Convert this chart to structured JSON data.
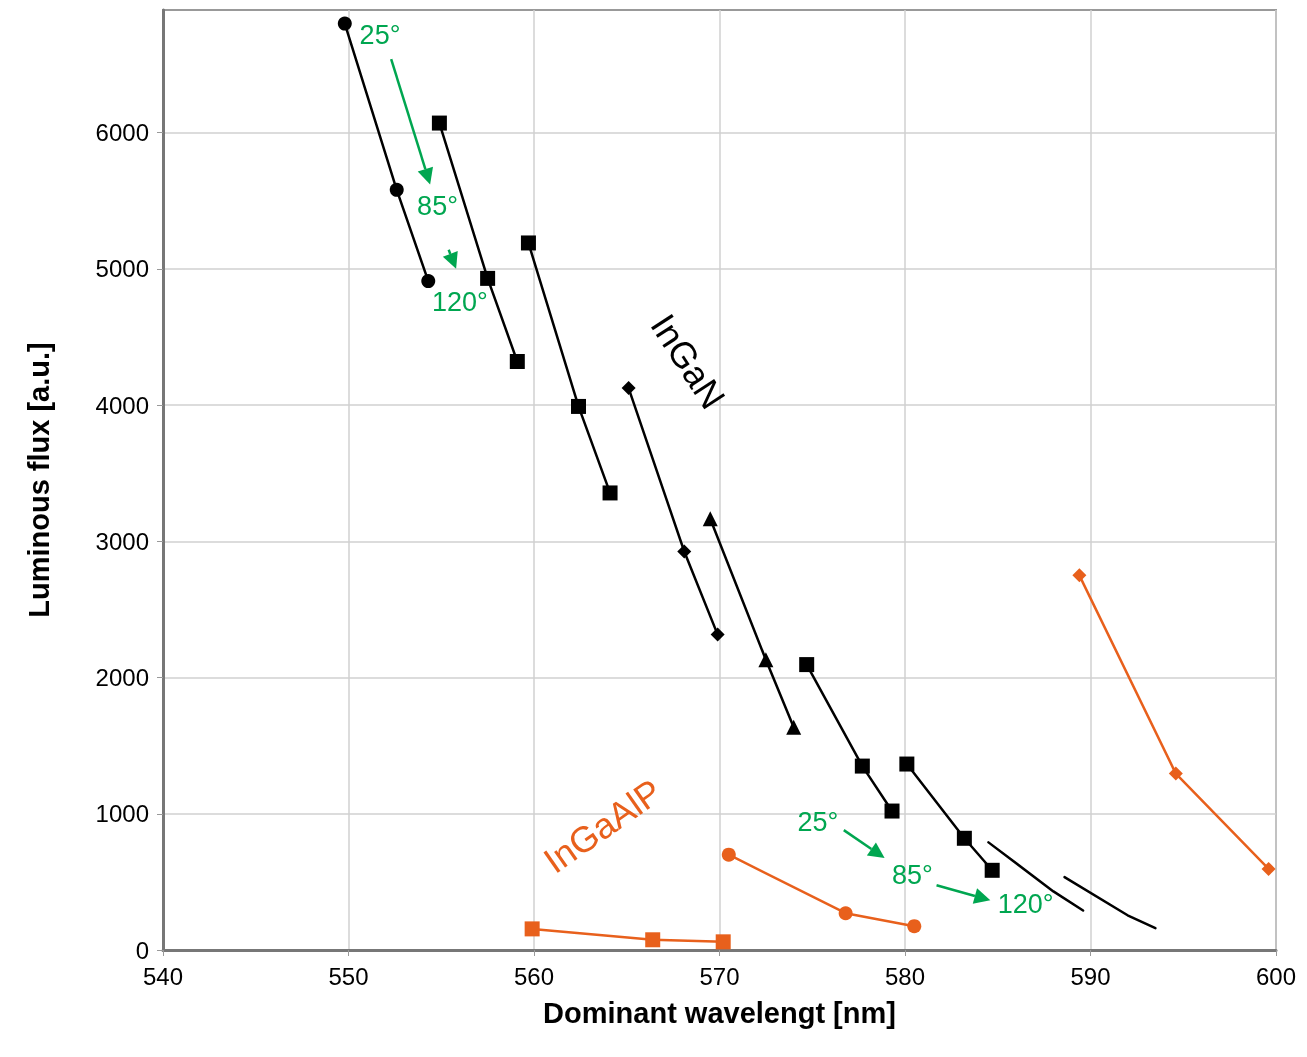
{
  "chart_data": {
    "type": "line",
    "xlabel": "Dominant wavelengt [nm]",
    "ylabel": "Luminous flux [a.u.]",
    "xlim": [
      540,
      600
    ],
    "xticks": [
      540,
      550,
      560,
      570,
      580,
      590,
      600
    ],
    "ylim": [
      0,
      6900
    ],
    "yticks": [
      0,
      1000,
      2000,
      3000,
      4000,
      5000,
      6000
    ],
    "grid": true,
    "line_style": "solid",
    "annotations": [
      "25°",
      "85°",
      "120°",
      "InGaN",
      "InGaAlP",
      "25°",
      "85°",
      "120°"
    ],
    "series": [
      {
        "color": "#000000",
        "marker": "circle",
        "x": [
          549.8,
          552.6,
          554.3
        ],
        "values": [
          6800,
          5580,
          4910
        ]
      },
      {
        "color": "#000000",
        "marker": "square",
        "x": [
          554.9,
          557.5,
          559.1
        ],
        "values": [
          6070,
          4930,
          4320
        ]
      },
      {
        "color": "#000000",
        "marker": "square",
        "x": [
          559.7,
          562.4,
          564.1
        ],
        "values": [
          5190,
          3990,
          3355
        ]
      },
      {
        "color": "#000000",
        "marker": "diamond",
        "x": [
          565.1,
          568.1,
          569.9
        ],
        "values": [
          4125,
          2925,
          2315
        ]
      },
      {
        "color": "#000000",
        "marker": "triangle",
        "x": [
          569.5,
          572.5,
          574.0
        ],
        "values": [
          3165,
          2130,
          1635
        ]
      },
      {
        "color": "#000000",
        "marker": "square",
        "x": [
          574.7,
          577.7,
          579.3
        ],
        "values": [
          2095,
          1350,
          1020
        ]
      },
      {
        "color": "#000000",
        "marker": "square",
        "x": [
          580.1,
          583.2,
          584.7
        ],
        "values": [
          1365,
          820,
          585
        ]
      },
      {
        "color": "#000000",
        "marker": "none",
        "x": [
          584.5,
          588.0,
          589.6
        ],
        "values": [
          790,
          430,
          290
        ]
      },
      {
        "color": "#000000",
        "marker": "none",
        "x": [
          588.6,
          592.0,
          593.5
        ],
        "values": [
          535,
          255,
          160
        ]
      },
      {
        "color": "#e8601c",
        "marker": "square",
        "x": [
          559.9,
          566.4,
          570.2
        ],
        "values": [
          155,
          75,
          60
        ]
      },
      {
        "color": "#e8601c",
        "marker": "circle",
        "x": [
          570.5,
          576.8,
          580.5
        ],
        "values": [
          700,
          270,
          175
        ]
      },
      {
        "color": "#e8601c",
        "marker": "diamond",
        "x": [
          589.4,
          594.6,
          599.6
        ],
        "values": [
          2750,
          1295,
          595
        ]
      }
    ]
  }
}
